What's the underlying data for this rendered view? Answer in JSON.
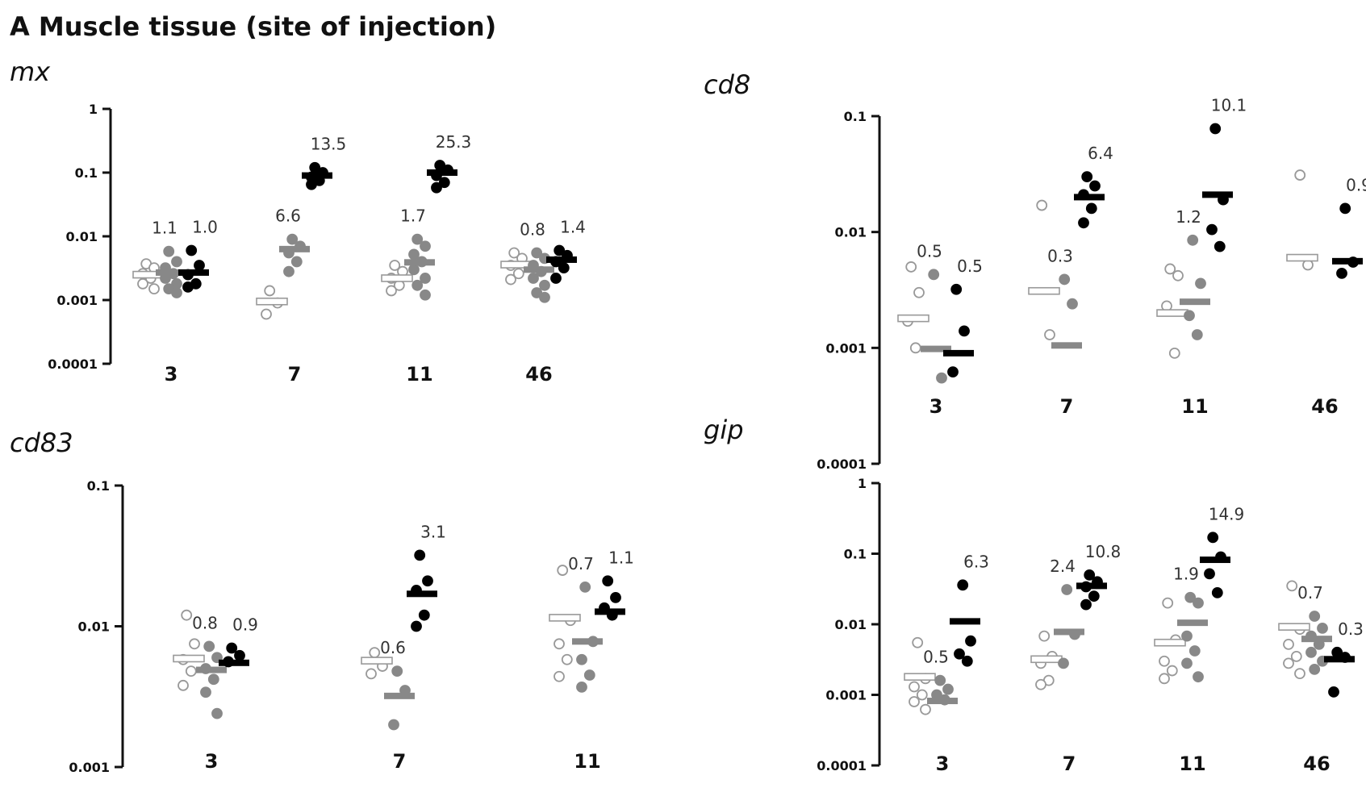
{
  "figure_title": "A Muscle tissue (site of injection)",
  "colors": {
    "open": "#ffffff",
    "open_stroke": "#999999",
    "gray": "#888888",
    "black": "#000000",
    "axis": "#111111"
  },
  "chart_data": [
    {
      "type": "scatter",
      "title": "mx",
      "yscale": "log",
      "ylim": [
        0.0001,
        1
      ],
      "yticks": [
        1,
        0.1,
        0.01,
        0.001,
        0.0001
      ],
      "ytick_labels": [
        "1",
        "0.1",
        "0.01",
        "0.001",
        "0.0001"
      ],
      "categories": [
        "3",
        "7",
        "11",
        "46"
      ],
      "groups": [
        {
          "x": "3",
          "series": [
            {
              "name": "control",
              "style": "open",
              "points": [
                0.0037,
                0.0032,
                0.0026,
                0.0022,
                0.0018,
                0.0015
              ],
              "mean": 0.0025
            },
            {
              "name": "gray",
              "style": "gray",
              "points": [
                0.0058,
                0.004,
                0.0032,
                0.0026,
                0.0022,
                0.0018,
                0.0015,
                0.0013
              ],
              "mean": 0.0027
            },
            {
              "name": "black",
              "style": "black",
              "points": [
                0.006,
                0.0035,
                0.0025,
                0.0018,
                0.0016
              ],
              "mean": 0.0027
            }
          ],
          "fold_labels": [
            {
              "text": "1.1",
              "series": "gray"
            },
            {
              "text": "1.0",
              "series": "black"
            }
          ]
        },
        {
          "x": "7",
          "series": [
            {
              "name": "control",
              "style": "open",
              "points": [
                0.0014,
                0.0009,
                0.0006
              ],
              "mean": 0.00095
            },
            {
              "name": "gray",
              "style": "gray",
              "points": [
                0.009,
                0.007,
                0.0055,
                0.004,
                0.0028
              ],
              "mean": 0.0063
            },
            {
              "name": "black",
              "style": "black",
              "points": [
                0.12,
                0.1,
                0.085,
                0.075,
                0.065
              ],
              "mean": 0.09
            }
          ],
          "fold_labels": [
            {
              "text": "6.6",
              "series": "gray"
            },
            {
              "text": "13.5",
              "series": "black"
            }
          ]
        },
        {
          "x": "11",
          "series": [
            {
              "name": "control",
              "style": "open",
              "points": [
                0.0035,
                0.0028,
                0.0022,
                0.0017,
                0.0014
              ],
              "mean": 0.0022
            },
            {
              "name": "gray",
              "style": "gray",
              "points": [
                0.009,
                0.007,
                0.0052,
                0.004,
                0.003,
                0.0022,
                0.0017,
                0.0012
              ],
              "mean": 0.0039
            },
            {
              "name": "black",
              "style": "black",
              "points": [
                0.13,
                0.11,
                0.09,
                0.07,
                0.058
              ],
              "mean": 0.1
            }
          ],
          "fold_labels": [
            {
              "text": "1.7",
              "series": "gray"
            },
            {
              "text": "25.3",
              "series": "black"
            }
          ]
        },
        {
          "x": "46",
          "series": [
            {
              "name": "control",
              "style": "open",
              "points": [
                0.0055,
                0.0045,
                0.0035,
                0.0026,
                0.0021
              ],
              "mean": 0.0036
            },
            {
              "name": "gray",
              "style": "gray",
              "points": [
                0.0055,
                0.0045,
                0.0035,
                0.0028,
                0.0022,
                0.0017,
                0.0013,
                0.0011
              ],
              "mean": 0.003
            },
            {
              "name": "black",
              "style": "black",
              "points": [
                0.006,
                0.005,
                0.004,
                0.0032,
                0.0022
              ],
              "mean": 0.0043
            }
          ],
          "fold_labels": [
            {
              "text": "0.8",
              "series": "gray"
            },
            {
              "text": "1.4",
              "series": "black"
            }
          ]
        }
      ]
    },
    {
      "type": "scatter",
      "title": "cd8",
      "yscale": "log",
      "ylim": [
        0.0001,
        0.1
      ],
      "yticks": [
        0.1,
        0.01,
        0.001,
        0.0001
      ],
      "ytick_labels": [
        "0.1",
        "0.01",
        "0.001",
        "0.0001"
      ],
      "categories": [
        "3",
        "7",
        "11",
        "46"
      ],
      "groups": [
        {
          "x": "3",
          "series": [
            {
              "name": "control",
              "style": "open",
              "points": [
                0.005,
                0.003,
                0.0017,
                0.001
              ],
              "mean": 0.0018
            },
            {
              "name": "gray",
              "style": "gray",
              "points": [
                0.0043,
                0.00055
              ],
              "mean": 0.00098
            },
            {
              "name": "black",
              "style": "black",
              "points": [
                0.0032,
                0.0014,
                0.00062
              ],
              "mean": 0.0009
            }
          ],
          "fold_labels": [
            {
              "text": "0.5",
              "series": "gray"
            },
            {
              "text": "0.5",
              "series": "black"
            }
          ]
        },
        {
          "x": "7",
          "series": [
            {
              "name": "control",
              "style": "open",
              "points": [
                0.017,
                0.0013
              ],
              "mean": 0.0031
            },
            {
              "name": "gray",
              "style": "gray",
              "points": [
                0.0039,
                0.0024
              ],
              "mean": 0.00105
            },
            {
              "name": "black",
              "style": "black",
              "points": [
                0.03,
                0.025,
                0.021,
                0.016,
                0.012
              ],
              "mean": 0.02
            }
          ],
          "fold_labels": [
            {
              "text": "0.3",
              "series": "gray"
            },
            {
              "text": "6.4",
              "series": "black"
            }
          ]
        },
        {
          "x": "11",
          "series": [
            {
              "name": "control",
              "style": "open",
              "points": [
                0.0048,
                0.0042,
                0.0023,
                0.0009
              ],
              "mean": 0.002
            },
            {
              "name": "gray",
              "style": "gray",
              "points": [
                0.0085,
                0.0036,
                0.0019,
                0.0013
              ],
              "mean": 0.0025
            },
            {
              "name": "black",
              "style": "black",
              "points": [
                0.078,
                0.019,
                0.0105,
                0.0075
              ],
              "mean": 0.021
            }
          ],
          "fold_labels": [
            {
              "text": "1.2",
              "series": "gray"
            },
            {
              "text": "10.1",
              "series": "black"
            }
          ]
        },
        {
          "x": "46",
          "series": [
            {
              "name": "control",
              "style": "open",
              "points": [
                0.031,
                0.0052
              ],
              "mean": 0.006
            },
            {
              "name": "black",
              "style": "black",
              "points": [
                0.016,
                0.0055,
                0.0044
              ],
              "mean": 0.0056
            }
          ],
          "fold_labels": [
            {
              "text": "0.9",
              "series": "black"
            }
          ]
        }
      ]
    },
    {
      "type": "scatter",
      "title": "cd83",
      "yscale": "log",
      "ylim": [
        0.001,
        0.1
      ],
      "yticks": [
        0.1,
        0.01,
        0.001
      ],
      "ytick_labels": [
        "0.1",
        "0.01",
        "0.001"
      ],
      "categories": [
        "3",
        "7",
        "11"
      ],
      "groups": [
        {
          "x": "3",
          "series": [
            {
              "name": "control",
              "style": "open",
              "points": [
                0.012,
                0.0075,
                0.0058,
                0.0048,
                0.0038
              ],
              "mean": 0.0059
            },
            {
              "name": "gray",
              "style": "gray",
              "points": [
                0.0072,
                0.006,
                0.005,
                0.0042,
                0.0034,
                0.0024
              ],
              "mean": 0.0049
            },
            {
              "name": "black",
              "style": "black",
              "points": [
                0.007,
                0.0062,
                0.0056
              ],
              "mean": 0.0055
            }
          ],
          "fold_labels": [
            {
              "text": "0.8",
              "series": "gray"
            },
            {
              "text": "0.9",
              "series": "black"
            }
          ]
        },
        {
          "x": "7",
          "series": [
            {
              "name": "control",
              "style": "open",
              "points": [
                0.0065,
                0.0052,
                0.0046
              ],
              "mean": 0.0057
            },
            {
              "name": "gray",
              "style": "gray",
              "points": [
                0.0048,
                0.0035,
                0.002
              ],
              "mean": 0.0032
            },
            {
              "name": "black",
              "style": "black",
              "points": [
                0.032,
                0.021,
                0.018,
                0.012,
                0.01
              ],
              "mean": 0.017
            }
          ],
          "fold_labels": [
            {
              "text": "0.6",
              "series": "gray"
            },
            {
              "text": "3.1",
              "series": "black"
            }
          ]
        },
        {
          "x": "11",
          "series": [
            {
              "name": "control",
              "style": "open",
              "points": [
                0.025,
                0.011,
                0.0075,
                0.0058,
                0.0044
              ],
              "mean": 0.0115
            },
            {
              "name": "gray",
              "style": "gray",
              "points": [
                0.019,
                0.0078,
                0.0058,
                0.0045,
                0.0037
              ],
              "mean": 0.0078
            },
            {
              "name": "black",
              "style": "black",
              "points": [
                0.021,
                0.016,
                0.0135,
                0.012
              ],
              "mean": 0.0127
            }
          ],
          "fold_labels": [
            {
              "text": "0.7",
              "series": "gray"
            },
            {
              "text": "1.1",
              "series": "black"
            }
          ]
        }
      ]
    },
    {
      "type": "scatter",
      "title": "gip",
      "yscale": "log",
      "ylim": [
        0.0001,
        1
      ],
      "yticks": [
        1,
        0.1,
        0.01,
        0.001,
        0.0001
      ],
      "ytick_labels": [
        "1",
        "0.1",
        "0.01",
        "0.001",
        "0.0001"
      ],
      "categories": [
        "3",
        "7",
        "11",
        "46"
      ],
      "groups": [
        {
          "x": "3",
          "series": [
            {
              "name": "control",
              "style": "open",
              "points": [
                0.0055,
                0.0017,
                0.0013,
                0.001,
                0.0008,
                0.00062
              ],
              "mean": 0.0018
            },
            {
              "name": "gray",
              "style": "gray",
              "points": [
                0.0016,
                0.0012,
                0.001,
                0.00085
              ],
              "mean": 0.00082
            },
            {
              "name": "black",
              "style": "black",
              "points": [
                0.036,
                0.0058,
                0.0038,
                0.003
              ],
              "mean": 0.011
            }
          ],
          "fold_labels": [
            {
              "text": "0.5",
              "series": "gray"
            },
            {
              "text": "6.3",
              "series": "black"
            }
          ]
        },
        {
          "x": "7",
          "series": [
            {
              "name": "control",
              "style": "open",
              "points": [
                0.0068,
                0.0035,
                0.0028,
                0.0016,
                0.0014
              ],
              "mean": 0.0032
            },
            {
              "name": "gray",
              "style": "gray",
              "points": [
                0.031,
                0.0072,
                0.0028
              ],
              "mean": 0.0078
            },
            {
              "name": "black",
              "style": "black",
              "points": [
                0.05,
                0.04,
                0.034,
                0.025,
                0.019
              ],
              "mean": 0.035
            }
          ],
          "fold_labels": [
            {
              "text": "2.4",
              "series": "gray"
            },
            {
              "text": "10.8",
              "series": "black"
            }
          ]
        },
        {
          "x": "11",
          "series": [
            {
              "name": "control",
              "style": "open",
              "points": [
                0.02,
                0.006,
                0.003,
                0.0022,
                0.0017
              ],
              "mean": 0.0055
            },
            {
              "name": "gray",
              "style": "gray",
              "points": [
                0.024,
                0.02,
                0.0068,
                0.0042,
                0.0028,
                0.0018
              ],
              "mean": 0.0105
            },
            {
              "name": "black",
              "style": "black",
              "points": [
                0.17,
                0.09,
                0.052,
                0.028
              ],
              "mean": 0.082
            }
          ],
          "fold_labels": [
            {
              "text": "1.9",
              "series": "gray"
            },
            {
              "text": "14.9",
              "series": "black"
            }
          ]
        },
        {
          "x": "46",
          "series": [
            {
              "name": "control",
              "style": "open",
              "points": [
                0.035,
                0.0085,
                0.0052,
                0.0035,
                0.0028,
                0.002
              ],
              "mean": 0.0092
            },
            {
              "name": "gray",
              "style": "gray",
              "points": [
                0.013,
                0.0088,
                0.0068,
                0.0052,
                0.004,
                0.003,
                0.0023
              ],
              "mean": 0.0062
            },
            {
              "name": "black",
              "style": "black",
              "points": [
                0.004,
                0.0034,
                0.0011
              ],
              "mean": 0.0032
            }
          ],
          "fold_labels": [
            {
              "text": "0.7",
              "series": "gray"
            },
            {
              "text": "0.3",
              "series": "black"
            }
          ]
        }
      ]
    }
  ]
}
